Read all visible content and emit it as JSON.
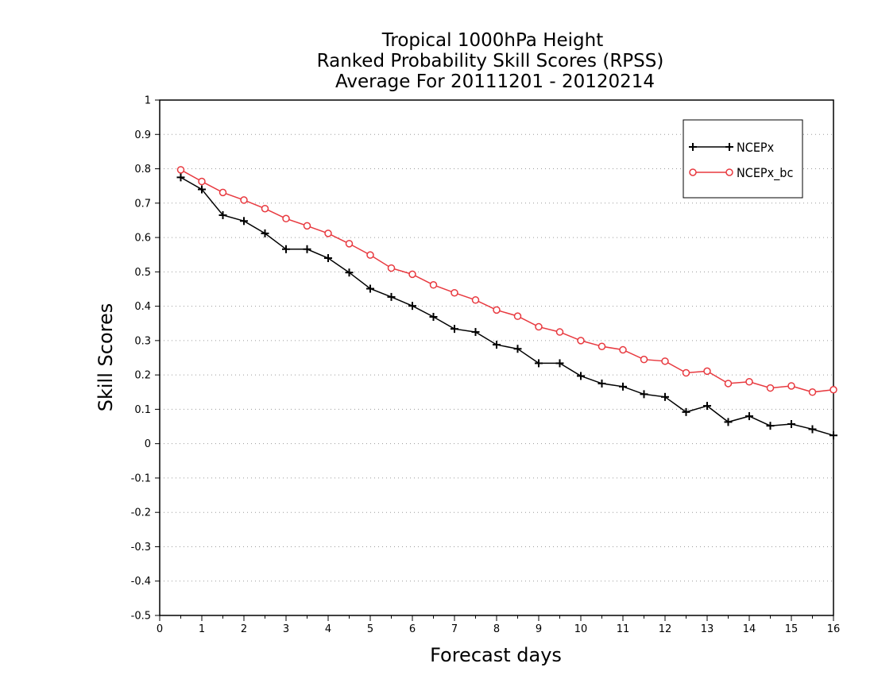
{
  "chart_data": {
    "type": "line",
    "title": [
      "Tropical 1000hPa Height",
      "Ranked Probability Skill Scores (RPSS)",
      "Average For 20111201 - 20120214"
    ],
    "xlabel": "Forecast days",
    "ylabel": "Skill Scores",
    "xlim": [
      0,
      16
    ],
    "ylim": [
      -0.5,
      1
    ],
    "x_ticks": [
      0,
      1,
      2,
      3,
      4,
      5,
      6,
      7,
      8,
      9,
      10,
      11,
      12,
      13,
      14,
      15,
      16
    ],
    "y_ticks": [
      -0.5,
      -0.4,
      -0.3,
      -0.2,
      -0.1,
      0,
      0.1,
      0.2,
      0.3,
      0.4,
      0.5,
      0.6,
      0.7,
      0.8,
      0.9,
      1
    ],
    "y_tick_labels": [
      "-0.5",
      "-0.4",
      "-0.3",
      "-0.2",
      "-0.1",
      "0",
      "0.1",
      "0.2",
      "0.3",
      "0.4",
      "0.5",
      "0.6",
      "0.7",
      "0.8",
      "0.9",
      "1"
    ],
    "grid": "horizontal dotted",
    "legend_position": "top-right",
    "x": [
      0.5,
      1.0,
      1.5,
      2.0,
      2.5,
      3.0,
      3.5,
      4.0,
      4.5,
      5.0,
      5.5,
      6.0,
      6.5,
      7.0,
      7.5,
      8.0,
      8.5,
      9.0,
      9.5,
      10.0,
      10.5,
      11.0,
      11.5,
      12.0,
      12.5,
      13.0,
      13.5,
      14.0,
      14.5,
      15.0,
      15.5,
      16.0
    ],
    "series": [
      {
        "name": "NCEPx",
        "color": "#000000",
        "marker": "plus",
        "values": [
          0.775,
          0.74,
          0.665,
          0.648,
          0.612,
          0.566,
          0.566,
          0.54,
          0.498,
          0.451,
          0.427,
          0.401,
          0.369,
          0.334,
          0.325,
          0.288,
          0.276,
          0.234,
          0.234,
          0.197,
          0.175,
          0.166,
          0.144,
          0.136,
          0.092,
          0.11,
          0.063,
          0.08,
          0.052,
          0.057,
          0.042,
          0.024
        ]
      },
      {
        "name": "NCEPx_bc",
        "color": "#e8393f",
        "marker": "circle",
        "values": [
          0.797,
          0.763,
          0.731,
          0.709,
          0.684,
          0.655,
          0.634,
          0.612,
          0.582,
          0.549,
          0.511,
          0.493,
          0.462,
          0.439,
          0.418,
          0.389,
          0.371,
          0.34,
          0.325,
          0.3,
          0.283,
          0.273,
          0.245,
          0.24,
          0.206,
          0.211,
          0.175,
          0.18,
          0.162,
          0.168,
          0.15,
          0.157
        ]
      }
    ]
  }
}
